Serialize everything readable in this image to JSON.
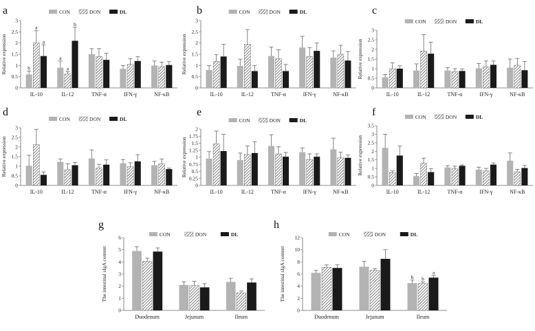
{
  "colors": {
    "CON": "#b3b3b3",
    "DON": "hatched",
    "DL": "#1a1a1a"
  },
  "chart_data": [
    {
      "panel": "a",
      "type": "bar",
      "ylabel": "Relative expression",
      "ylim": [
        0,
        3
      ],
      "yticks": [
        "0",
        "0.5",
        "1",
        "1.5",
        "2",
        "2.5",
        "3"
      ],
      "categories": [
        "IL-10",
        "IL-12",
        "TNF-α",
        "IFN-γ",
        "NF-κB"
      ],
      "legend": [
        "CON",
        "DON",
        "DL"
      ],
      "series": [
        {
          "name": "CON",
          "values": [
            0.6,
            0.9,
            1.5,
            0.85,
            1.0
          ],
          "errors": [
            0.15,
            0.3,
            0.25,
            0.15,
            0.2
          ]
        },
        {
          "name": "DON",
          "values": [
            2.0,
            0.62,
            1.4,
            1.05,
            0.95
          ],
          "errors": [
            0.55,
            0.1,
            0.35,
            0.25,
            0.2
          ]
        },
        {
          "name": "DL",
          "values": [
            1.42,
            2.1,
            1.25,
            1.2,
            1.02
          ],
          "errors": [
            0.5,
            0.6,
            0.3,
            0.2,
            0.15
          ]
        }
      ],
      "annotations": [
        [
          "b",
          "a",
          "",
          ""
        ],
        [
          "a",
          "a",
          "",
          ""
        ],
        [
          "a",
          "b",
          "",
          ""
        ]
      ]
    },
    {
      "panel": "b",
      "type": "bar",
      "ylabel": "Relative expression",
      "ylim": [
        0,
        3
      ],
      "yticks": [
        "0",
        "0.5",
        "1",
        "1.5",
        "2",
        "2.5",
        "3"
      ],
      "categories": [
        "IL-10",
        "IL-12",
        "TNF-α",
        "IFN-γ",
        "NF-κB"
      ],
      "legend": [
        "CON",
        "DON",
        "DL"
      ],
      "series": [
        {
          "name": "CON",
          "values": [
            0.8,
            0.98,
            1.42,
            1.8,
            1.35
          ],
          "errors": [
            0.2,
            0.3,
            0.4,
            0.5,
            0.3
          ]
        },
        {
          "name": "DON",
          "values": [
            1.18,
            1.95,
            1.3,
            1.4,
            1.5
          ],
          "errors": [
            0.3,
            0.65,
            0.4,
            0.4,
            0.4
          ]
        },
        {
          "name": "DL",
          "values": [
            1.4,
            0.75,
            0.75,
            1.65,
            1.22
          ],
          "errors": [
            0.55,
            0.25,
            0.3,
            0.35,
            0.4
          ]
        }
      ]
    },
    {
      "panel": "c",
      "type": "bar",
      "ylabel": "Relative expression",
      "ylim": [
        0,
        3
      ],
      "yticks": [
        "0",
        "0.5",
        "1",
        "1.5",
        "2",
        "2.5",
        "3"
      ],
      "categories": [
        "IL-10",
        "IL-12",
        "TNF-α",
        "IFN-γ",
        "NF-κB"
      ],
      "legend": [
        "CON",
        "DON",
        "DL"
      ],
      "series": [
        {
          "name": "CON",
          "values": [
            0.55,
            0.9,
            0.9,
            1.02,
            1.05
          ],
          "errors": [
            0.15,
            0.35,
            0.15,
            0.25,
            0.45
          ]
        },
        {
          "name": "DON",
          "values": [
            1.0,
            1.92,
            0.85,
            1.1,
            1.18
          ],
          "errors": [
            0.3,
            0.85,
            0.15,
            0.3,
            0.35
          ]
        },
        {
          "name": "DL",
          "values": [
            1.0,
            1.78,
            0.88,
            1.2,
            0.92
          ],
          "errors": [
            0.15,
            0.6,
            0.1,
            0.2,
            0.45
          ]
        }
      ]
    },
    {
      "panel": "d",
      "type": "bar",
      "ylabel": "Relative expression",
      "ylim": [
        0,
        3
      ],
      "yticks": [
        "0",
        "0.5",
        "1",
        "1.5",
        "2",
        "2.5",
        "3"
      ],
      "categories": [
        "IL-10",
        "IL-12",
        "TNF-α",
        "IFN-γ",
        "NF-κB"
      ],
      "legend": [
        "CON",
        "DON",
        "DL"
      ],
      "series": [
        {
          "name": "CON",
          "values": [
            1.02,
            1.22,
            1.4,
            1.15,
            1.05
          ],
          "errors": [
            0.55,
            0.15,
            0.45,
            0.2,
            0.2
          ]
        },
        {
          "name": "DON",
          "values": [
            2.12,
            0.82,
            0.9,
            0.98,
            1.12
          ],
          "errors": [
            0.8,
            0.3,
            0.2,
            0.2,
            0.25
          ]
        },
        {
          "name": "DL",
          "values": [
            0.55,
            1.05,
            1.08,
            1.25,
            0.85
          ],
          "errors": [
            0.15,
            0.15,
            0.25,
            0.35,
            0.05
          ]
        }
      ]
    },
    {
      "panel": "e",
      "type": "bar",
      "ylabel": "Relative expression",
      "ylim": [
        0,
        2
      ],
      "yticks": [
        "0",
        "0.25",
        "0.5",
        "0.75",
        "1",
        "1.25",
        "1.5",
        "1.75",
        "2"
      ],
      "categories": [
        "IL-10",
        "IL-12",
        "TNF-α",
        "IFN-γ",
        "NF-κB"
      ],
      "legend": [
        "CON",
        "DON",
        "DL"
      ],
      "series": [
        {
          "name": "CON",
          "values": [
            0.95,
            0.9,
            1.4,
            1.18,
            1.28
          ],
          "errors": [
            0.25,
            0.25,
            0.4,
            0.15,
            0.4
          ]
        },
        {
          "name": "DON",
          "values": [
            1.48,
            1.1,
            1.12,
            0.92,
            0.98
          ],
          "errors": [
            0.45,
            0.3,
            0.25,
            0.2,
            0.2
          ]
        },
        {
          "name": "DL",
          "values": [
            1.22,
            1.15,
            1.02,
            1.02,
            0.98
          ],
          "errors": [
            0.6,
            0.4,
            0.15,
            0.1,
            0.1
          ]
        }
      ]
    },
    {
      "panel": "f",
      "type": "bar",
      "ylabel": "Relative expression",
      "ylim": [
        0,
        3.5
      ],
      "yticks": [
        "0",
        "0.5",
        "1",
        "1.5",
        "2",
        "2.5",
        "3",
        "3.5"
      ],
      "categories": [
        "IL-10",
        "IL-12",
        "TNF-α",
        "IFN-γ",
        "NF-κB"
      ],
      "legend": [
        "CON",
        "DON",
        "DL"
      ],
      "series": [
        {
          "name": "CON",
          "values": [
            2.2,
            0.55,
            1.05,
            0.92,
            1.45
          ],
          "errors": [
            0.8,
            0.15,
            0.1,
            0.15,
            0.45
          ]
        },
        {
          "name": "DON",
          "values": [
            0.75,
            1.3,
            0.98,
            0.85,
            0.8
          ],
          "errors": [
            0.1,
            0.3,
            0.15,
            0.15,
            0.15
          ]
        },
        {
          "name": "DL",
          "values": [
            1.75,
            0.78,
            1.15,
            1.22,
            1.02
          ],
          "errors": [
            0.55,
            0.2,
            0.05,
            0.1,
            0.15
          ]
        }
      ]
    },
    {
      "panel": "g",
      "type": "bar",
      "ylabel": "The intestinal sIgA content",
      "ylim": [
        0,
        6
      ],
      "yticks": [
        "0",
        "1",
        "2",
        "3",
        "4",
        "5",
        "6"
      ],
      "categories": [
        "Duodenum",
        "Jejunum",
        "Ileum"
      ],
      "legend": [
        "CON",
        "DON",
        "DL"
      ],
      "series": [
        {
          "name": "CON",
          "values": [
            4.9,
            2.1,
            2.35
          ],
          "errors": [
            0.35,
            0.25,
            0.3
          ]
        },
        {
          "name": "DON",
          "values": [
            4.05,
            2.05,
            1.45
          ],
          "errors": [
            0.25,
            0.35,
            0.15
          ]
        },
        {
          "name": "DL",
          "values": [
            4.85,
            1.9,
            2.3
          ],
          "errors": [
            0.3,
            0.3,
            0.3
          ]
        }
      ]
    },
    {
      "panel": "h",
      "type": "bar",
      "ylabel": "The intestinal sIgA content",
      "ylim": [
        0,
        12
      ],
      "yticks": [
        "0",
        "2",
        "4",
        "6",
        "8",
        "10",
        "12"
      ],
      "categories": [
        "Duodenum",
        "Jejunum",
        "Ileum"
      ],
      "legend": [
        "CON",
        "DON",
        "DL"
      ],
      "series": [
        {
          "name": "CON",
          "values": [
            6.2,
            7.2,
            4.5
          ],
          "errors": [
            0.4,
            0.9,
            0.5
          ]
        },
        {
          "name": "DON",
          "values": [
            7.1,
            6.6,
            4.45
          ],
          "errors": [
            0.4,
            0.3,
            0.25
          ]
        },
        {
          "name": "DL",
          "values": [
            7.0,
            8.5,
            5.4
          ],
          "errors": [
            0.5,
            1.5,
            0.3
          ]
        }
      ],
      "annotations": [
        [
          "",
          "",
          "b"
        ],
        [
          "",
          "",
          "b"
        ],
        [
          "",
          "",
          "a"
        ]
      ]
    }
  ]
}
